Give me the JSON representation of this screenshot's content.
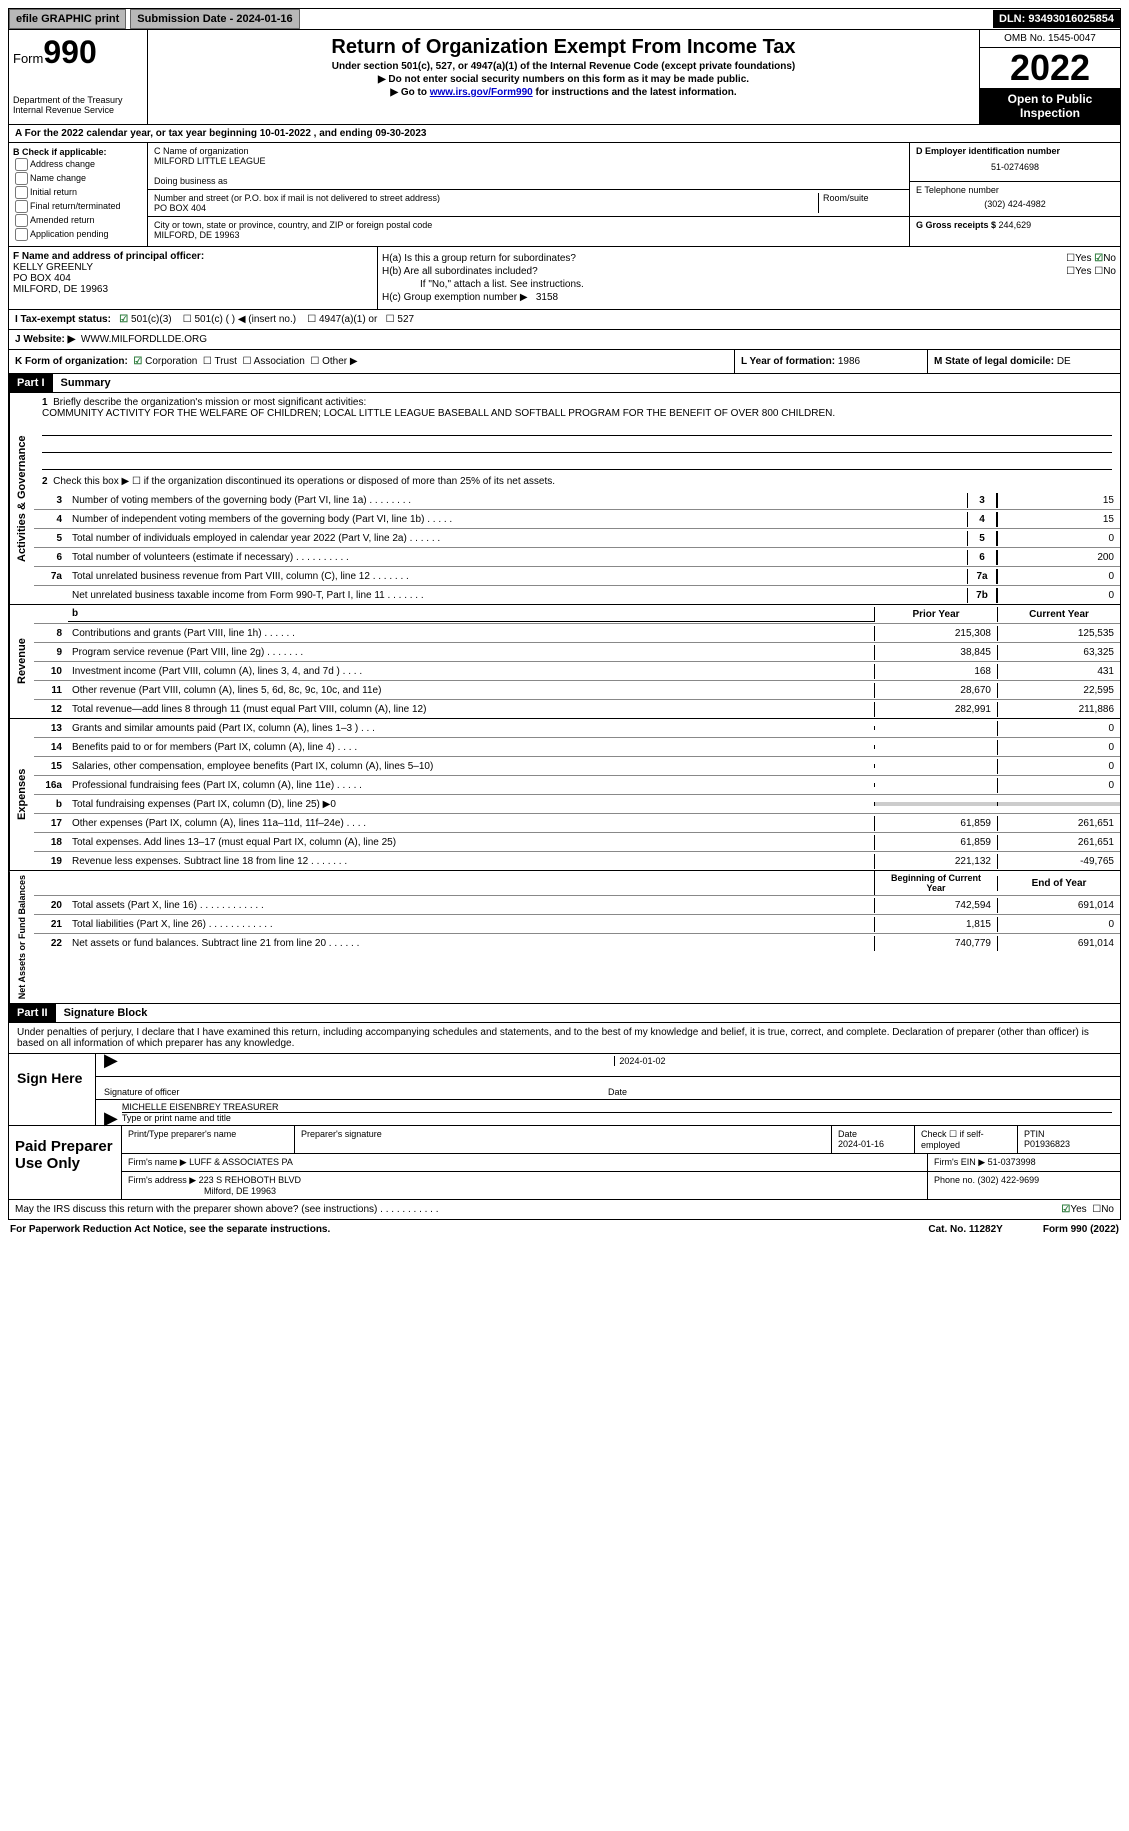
{
  "topbar": {
    "efile": "efile GRAPHIC print",
    "subdate_label": "Submission Date - ",
    "subdate": "2024-01-16",
    "dln_label": "DLN: ",
    "dln": "93493016025854"
  },
  "header": {
    "form_word": "Form",
    "form_num": "990",
    "dept": "Department of the Treasury\nInternal Revenue Service",
    "title": "Return of Organization Exempt From Income Tax",
    "sub": "Under section 501(c), 527, or 4947(a)(1) of the Internal Revenue Code (except private foundations)",
    "arrow1": "▶ Do not enter social security numbers on this form as it may be made public.",
    "arrow2_pre": "▶ Go to ",
    "arrow2_link": "www.irs.gov/Form990",
    "arrow2_post": " for instructions and the latest information.",
    "omb": "OMB No. 1545-0047",
    "year": "2022",
    "open": "Open to Public Inspection"
  },
  "rowA": {
    "pre": "A For the 2022 calendar year, or tax year beginning ",
    "begin": "10-01-2022",
    "mid": " , and ending ",
    "end": "09-30-2023"
  },
  "colB": {
    "hdr": "B Check if applicable:",
    "opts": [
      "Address change",
      "Name change",
      "Initial return",
      "Final return/terminated",
      "Amended return",
      "Application pending"
    ]
  },
  "colC": {
    "name_lbl": "C Name of organization",
    "name": "MILFORD LITTLE LEAGUE",
    "dba_lbl": "Doing business as",
    "addr_lbl": "Number and street (or P.O. box if mail is not delivered to street address)",
    "room_lbl": "Room/suite",
    "addr": "PO BOX 404",
    "city_lbl": "City or town, state or province, country, and ZIP or foreign postal code",
    "city": "MILFORD, DE  19963"
  },
  "colD": {
    "d_lbl": "D Employer identification number",
    "d_val": "51-0274698",
    "e_lbl": "E Telephone number",
    "e_val": "(302) 424-4982",
    "g_lbl": "G Gross receipts $ ",
    "g_val": "244,629"
  },
  "rowF": {
    "lbl": "F Name and address of principal officer:",
    "name": "KELLY GREENLY",
    "addr1": "PO BOX 404",
    "addr2": "MILFORD, DE  19963"
  },
  "rowH": {
    "ha": "H(a)  Is this a group return for subordinates?",
    "hb": "H(b)  Are all subordinates included?",
    "hb_note": "If \"No,\" attach a list. See instructions.",
    "hc": "H(c)  Group exemption number ▶",
    "hc_val": "3158",
    "yes": "Yes",
    "no": "No"
  },
  "rowI": {
    "lbl": "I    Tax-exempt status:",
    "o1": "501(c)(3)",
    "o2": "501(c) (  ) ◀ (insert no.)",
    "o3": "4947(a)(1) or",
    "o4": "527"
  },
  "rowJ": {
    "lbl": "J   Website: ▶",
    "val": "WWW.MILFORDLLDE.ORG"
  },
  "rowK": {
    "lbl": "K Form of organization:",
    "corp": "Corporation",
    "trust": "Trust",
    "assoc": "Association",
    "other": "Other ▶",
    "l_lbl": "L Year of formation: ",
    "l_val": "1986",
    "m_lbl": "M State of legal domicile: ",
    "m_val": "DE"
  },
  "parts": {
    "p1": "Part I",
    "p1_title": "Summary",
    "p2": "Part II",
    "p2_title": "Signature Block"
  },
  "vtabs": {
    "ag": "Activities & Governance",
    "rev": "Revenue",
    "exp": "Expenses",
    "net": "Net Assets or\nFund Balances"
  },
  "summary": {
    "l1_lbl": "Briefly describe the organization's mission or most significant activities:",
    "l1_txt": "COMMUNITY ACTIVITY FOR THE WELFARE OF CHILDREN; LOCAL LITTLE LEAGUE BASEBALL AND SOFTBALL PROGRAM FOR THE BENEFIT OF OVER 800 CHILDREN.",
    "l2": "Check this box ▶ ☐ if the organization discontinued its operations or disposed of more than 25% of its net assets.",
    "rows_ag": [
      {
        "n": "3",
        "d": "Number of voting members of the governing body (Part VI, line 1a)   .   .   .   .   .   .   .   .",
        "b": "3",
        "v": "15"
      },
      {
        "n": "4",
        "d": "Number of independent voting members of the governing body (Part VI, line 1b)   .   .   .   .   .",
        "b": "4",
        "v": "15"
      },
      {
        "n": "5",
        "d": "Total number of individuals employed in calendar year 2022 (Part V, line 2a)   .   .   .   .   .   .",
        "b": "5",
        "v": "0"
      },
      {
        "n": "6",
        "d": "Total number of volunteers (estimate if necessary)   .   .   .   .   .   .   .   .   .   .",
        "b": "6",
        "v": "200"
      },
      {
        "n": "7a",
        "d": "Total unrelated business revenue from Part VIII, column (C), line 12   .   .   .   .   .   .   .",
        "b": "7a",
        "v": "0"
      },
      {
        "n": "",
        "d": "Net unrelated business taxable income from Form 990-T, Part I, line 11   .   .   .   .   .   .   .",
        "b": "7b",
        "v": "0"
      }
    ],
    "hdr_prior": "Prior Year",
    "hdr_curr": "Current Year",
    "rows_rev": [
      {
        "n": "8",
        "d": "Contributions and grants (Part VIII, line 1h)   .   .   .   .   .   .",
        "p": "215,308",
        "c": "125,535"
      },
      {
        "n": "9",
        "d": "Program service revenue (Part VIII, line 2g)   .   .   .   .   .   .   .",
        "p": "38,845",
        "c": "63,325"
      },
      {
        "n": "10",
        "d": "Investment income (Part VIII, column (A), lines 3, 4, and 7d )   .   .   .   .",
        "p": "168",
        "c": "431"
      },
      {
        "n": "11",
        "d": "Other revenue (Part VIII, column (A), lines 5, 6d, 8c, 9c, 10c, and 11e)",
        "p": "28,670",
        "c": "22,595"
      },
      {
        "n": "12",
        "d": "Total revenue—add lines 8 through 11 (must equal Part VIII, column (A), line 12)",
        "p": "282,991",
        "c": "211,886"
      }
    ],
    "rows_exp": [
      {
        "n": "13",
        "d": "Grants and similar amounts paid (Part IX, column (A), lines 1–3 )   .   .   .",
        "p": "",
        "c": "0"
      },
      {
        "n": "14",
        "d": "Benefits paid to or for members (Part IX, column (A), line 4)   .   .   .   .",
        "p": "",
        "c": "0"
      },
      {
        "n": "15",
        "d": "Salaries, other compensation, employee benefits (Part IX, column (A), lines 5–10)",
        "p": "",
        "c": "0"
      },
      {
        "n": "16a",
        "d": "Professional fundraising fees (Part IX, column (A), line 11e)   .   .   .   .   .",
        "p": "",
        "c": "0"
      },
      {
        "n": "b",
        "d": "Total fundraising expenses (Part IX, column (D), line 25) ▶0",
        "p": "SHADE",
        "c": "SHADE"
      },
      {
        "n": "17",
        "d": "Other expenses (Part IX, column (A), lines 11a–11d, 11f–24e)   .   .   .   .",
        "p": "61,859",
        "c": "261,651"
      },
      {
        "n": "18",
        "d": "Total expenses. Add lines 13–17 (must equal Part IX, column (A), line 25)",
        "p": "61,859",
        "c": "261,651"
      },
      {
        "n": "19",
        "d": "Revenue less expenses. Subtract line 18 from line 12   .   .   .   .   .   .   .",
        "p": "221,132",
        "c": "-49,765"
      }
    ],
    "hdr_beg": "Beginning of Current Year",
    "hdr_end": "End of Year",
    "rows_net": [
      {
        "n": "20",
        "d": "Total assets (Part X, line 16)   .   .   .   .   .   .   .   .   .   .   .   .",
        "p": "742,594",
        "c": "691,014"
      },
      {
        "n": "21",
        "d": "Total liabilities (Part X, line 26)   .   .   .   .   .   .   .   .   .   .   .   .",
        "p": "1,815",
        "c": "0"
      },
      {
        "n": "22",
        "d": "Net assets or fund balances. Subtract line 21 from line 20   .   .   .   .   .   .",
        "p": "740,779",
        "c": "691,014"
      }
    ]
  },
  "sig": {
    "decl": "Under penalties of perjury, I declare that I have examined this return, including accompanying schedules and statements, and to the best of my knowledge and belief, it is true, correct, and complete. Declaration of preparer (other than officer) is based on all information of which preparer has any knowledge.",
    "sign_here": "Sign Here",
    "sig_officer": "Signature of officer",
    "date": "Date",
    "date_val": "2024-01-02",
    "name_title": "MICHELLE EISENBREY TREASURER",
    "type_name": "Type or print name and title"
  },
  "paid": {
    "hdr": "Paid Preparer Use Only",
    "r1": {
      "a": "Print/Type preparer's name",
      "b": "Preparer's signature",
      "c": "Date",
      "c_val": "2024-01-16",
      "d": "Check ☐ if self-employed",
      "e": "PTIN",
      "e_val": "P01936823"
    },
    "r2": {
      "a": "Firm's name      ▶ ",
      "a_val": "LUFF & ASSOCIATES PA",
      "b": "Firm's EIN ▶ ",
      "b_val": "51-0373998"
    },
    "r3": {
      "a": "Firm's address ▶ ",
      "a_val": "223 S REHOBOTH BLVD",
      "a_val2": "Milford, DE  19963",
      "b": "Phone no. ",
      "b_val": "(302) 422-9699"
    }
  },
  "footer": {
    "q": "May the IRS discuss this return with the preparer shown above? (see instructions)   .   .   .   .   .   .   .   .   .   .   .",
    "yes": "Yes",
    "no": "No"
  },
  "bottom": {
    "a": "For Paperwork Reduction Act Notice, see the separate instructions.",
    "b": "Cat. No. 11282Y",
    "c": "Form 990 (2022)"
  }
}
